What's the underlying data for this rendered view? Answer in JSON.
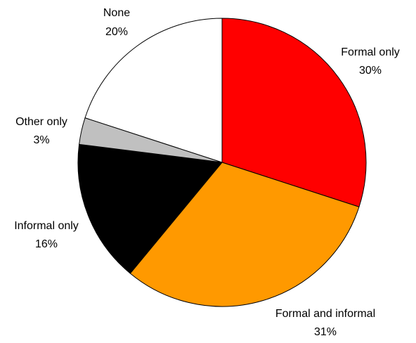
{
  "chart_data": {
    "type": "pie",
    "slices": [
      {
        "label": "Formal only",
        "value": 30,
        "value_label": "30%",
        "color": "#ff0000"
      },
      {
        "label": "Formal and informal",
        "value": 31,
        "value_label": "31%",
        "color": "#ff9900"
      },
      {
        "label": "Informal only",
        "value": 16,
        "value_label": "16%",
        "color": "#000000"
      },
      {
        "label": "Other only",
        "value": 3,
        "value_label": "3%",
        "color": "#c0c0c0"
      },
      {
        "label": "None",
        "value": 20,
        "value_label": "20%",
        "color": "#ffffff"
      }
    ],
    "start": "12 o'clock",
    "direction": "clockwise",
    "slice_outline_color": "#000000",
    "legend": "none"
  }
}
